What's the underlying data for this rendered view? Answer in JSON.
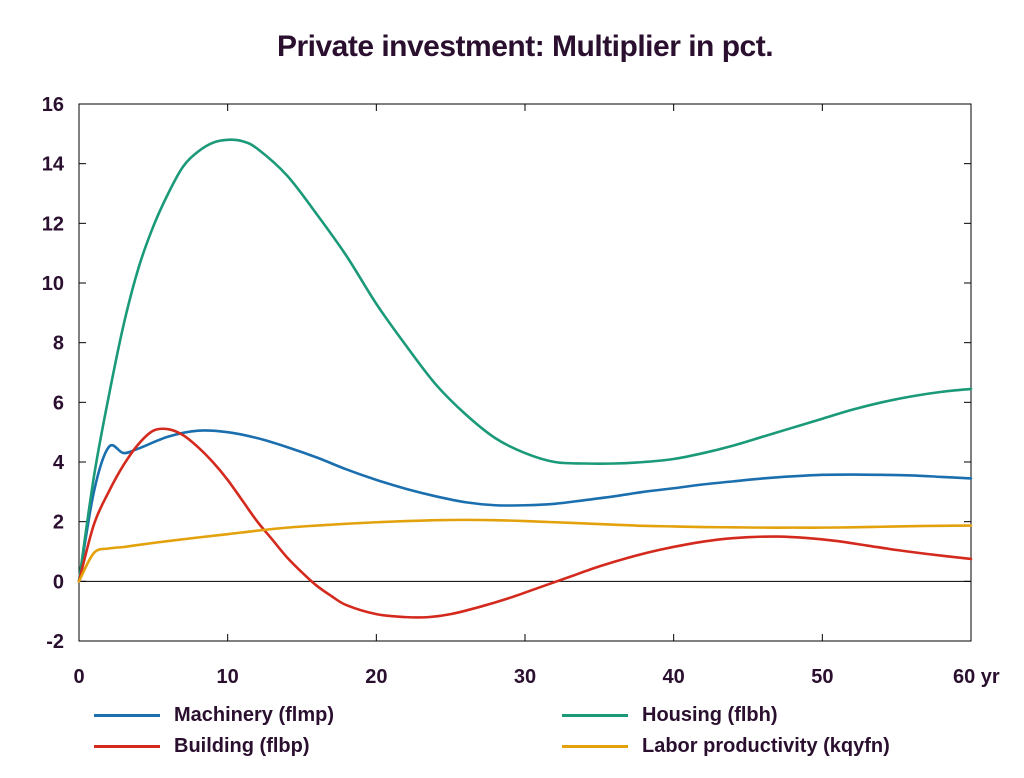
{
  "chart_data": {
    "type": "line",
    "title": "Private investment: Multiplier in pct.",
    "xlabel": "",
    "ylabel": "",
    "x_unit_label": "yr",
    "xlim": [
      0,
      60
    ],
    "ylim": [
      -2,
      16
    ],
    "x_ticks": [
      0,
      10,
      20,
      30,
      40,
      50,
      60
    ],
    "y_ticks": [
      -2,
      0,
      2,
      4,
      6,
      8,
      10,
      12,
      14,
      16
    ],
    "x_tick_labels": [
      "0",
      "10",
      "20",
      "30",
      "40",
      "50",
      "60 yr"
    ],
    "grid": false,
    "zero_line": true,
    "legend_position": "bottom",
    "series": [
      {
        "name": "Machinery (flmp)",
        "color": "#1b6fae",
        "x": [
          0,
          1,
          2,
          3,
          4,
          6,
          8,
          10,
          12,
          14,
          16,
          18,
          20,
          22,
          24,
          26,
          28,
          30,
          32,
          34,
          36,
          38,
          40,
          42,
          44,
          46,
          48,
          50,
          52,
          54,
          56,
          58,
          60
        ],
        "y": [
          0,
          3.0,
          4.5,
          4.3,
          4.45,
          4.85,
          5.05,
          5.0,
          4.8,
          4.5,
          4.15,
          3.75,
          3.4,
          3.1,
          2.85,
          2.65,
          2.55,
          2.55,
          2.6,
          2.72,
          2.85,
          3.0,
          3.12,
          3.25,
          3.35,
          3.45,
          3.52,
          3.57,
          3.58,
          3.57,
          3.55,
          3.5,
          3.45
        ]
      },
      {
        "name": "Housing (flbh)",
        "color": "#1a9a78",
        "x": [
          0,
          1,
          2,
          3,
          4,
          5,
          6,
          7,
          8,
          9,
          10,
          11,
          12,
          14,
          16,
          18,
          20,
          22,
          24,
          26,
          28,
          30,
          32,
          34,
          36,
          38,
          40,
          42,
          44,
          46,
          48,
          50,
          52,
          54,
          56,
          58,
          60
        ],
        "y": [
          0,
          3.5,
          6.2,
          8.6,
          10.5,
          11.9,
          13.0,
          13.9,
          14.4,
          14.7,
          14.8,
          14.75,
          14.5,
          13.6,
          12.3,
          10.9,
          9.3,
          7.9,
          6.6,
          5.6,
          4.8,
          4.3,
          4.0,
          3.95,
          3.95,
          4.0,
          4.1,
          4.3,
          4.55,
          4.85,
          5.15,
          5.45,
          5.75,
          6.0,
          6.2,
          6.35,
          6.45
        ]
      },
      {
        "name": "Building (flbp)",
        "color": "#d42a1e",
        "x": [
          0,
          1,
          2,
          3,
          4,
          5,
          6,
          7,
          8,
          9,
          10,
          11,
          12,
          13,
          14,
          15,
          16,
          17,
          18,
          20,
          22,
          23.5,
          25,
          27,
          29,
          31,
          33,
          35,
          37,
          39,
          41,
          43,
          45,
          47,
          49,
          51,
          53,
          55,
          57,
          60
        ],
        "y": [
          0,
          1.9,
          3.0,
          3.9,
          4.6,
          5.05,
          5.1,
          4.9,
          4.5,
          4.0,
          3.4,
          2.7,
          2.0,
          1.4,
          0.8,
          0.3,
          -0.15,
          -0.5,
          -0.8,
          -1.1,
          -1.2,
          -1.2,
          -1.1,
          -0.85,
          -0.55,
          -0.2,
          0.15,
          0.5,
          0.8,
          1.05,
          1.25,
          1.4,
          1.48,
          1.5,
          1.45,
          1.35,
          1.2,
          1.05,
          0.92,
          0.75
        ]
      },
      {
        "name": "Labor productivity (kqyfn)",
        "color": "#e3a20c",
        "x": [
          0,
          1,
          2,
          3,
          4,
          6,
          8,
          10,
          12,
          14,
          16,
          18,
          20,
          22,
          24,
          26,
          28,
          30,
          32,
          34,
          36,
          38,
          40,
          42,
          44,
          46,
          48,
          50,
          52,
          54,
          56,
          58,
          60
        ],
        "y": [
          0,
          0.95,
          1.1,
          1.15,
          1.22,
          1.35,
          1.47,
          1.58,
          1.7,
          1.8,
          1.87,
          1.93,
          1.98,
          2.02,
          2.05,
          2.06,
          2.05,
          2.02,
          1.98,
          1.94,
          1.9,
          1.86,
          1.84,
          1.82,
          1.81,
          1.8,
          1.8,
          1.8,
          1.81,
          1.83,
          1.85,
          1.86,
          1.87
        ]
      }
    ]
  }
}
